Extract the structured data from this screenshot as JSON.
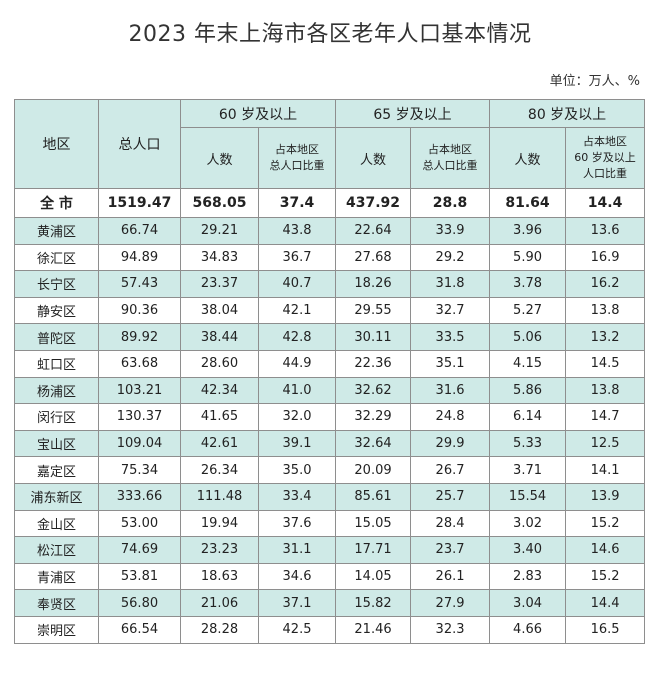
{
  "title": "2023 年末上海市各区老年人口基本情况",
  "unit": "单位：万人、%",
  "header": {
    "region": "地区",
    "total_pop": "总人口",
    "group60": "60 岁及以上",
    "group65": "65 岁及以上",
    "group80": "80 岁及以上",
    "people": "人数",
    "share_line1": "占本地区",
    "share_line2": "总人口比重",
    "share80_line1": "占本地区",
    "share80_line2": "60 岁及以上",
    "share80_line3": "人口比重"
  },
  "rows": [
    [
      "全 市",
      "1519.47",
      "568.05",
      "37.4",
      "437.92",
      "28.8",
      "81.64",
      "14.4"
    ],
    [
      "黄浦区",
      "66.74",
      "29.21",
      "43.8",
      "22.64",
      "33.9",
      "3.96",
      "13.6"
    ],
    [
      "徐汇区",
      "94.89",
      "34.83",
      "36.7",
      "27.68",
      "29.2",
      "5.90",
      "16.9"
    ],
    [
      "长宁区",
      "57.43",
      "23.37",
      "40.7",
      "18.26",
      "31.8",
      "3.78",
      "16.2"
    ],
    [
      "静安区",
      "90.36",
      "38.04",
      "42.1",
      "29.55",
      "32.7",
      "5.27",
      "13.8"
    ],
    [
      "普陀区",
      "89.92",
      "38.44",
      "42.8",
      "30.11",
      "33.5",
      "5.06",
      "13.2"
    ],
    [
      "虹口区",
      "63.68",
      "28.60",
      "44.9",
      "22.36",
      "35.1",
      "4.15",
      "14.5"
    ],
    [
      "杨浦区",
      "103.21",
      "42.34",
      "41.0",
      "32.62",
      "31.6",
      "5.86",
      "13.8"
    ],
    [
      "闵行区",
      "130.37",
      "41.65",
      "32.0",
      "32.29",
      "24.8",
      "6.14",
      "14.7"
    ],
    [
      "宝山区",
      "109.04",
      "42.61",
      "39.1",
      "32.64",
      "29.9",
      "5.33",
      "12.5"
    ],
    [
      "嘉定区",
      "75.34",
      "26.34",
      "35.0",
      "20.09",
      "26.7",
      "3.71",
      "14.1"
    ],
    [
      "浦东新区",
      "333.66",
      "111.48",
      "33.4",
      "85.61",
      "25.7",
      "15.54",
      "13.9"
    ],
    [
      "金山区",
      "53.00",
      "19.94",
      "37.6",
      "15.05",
      "28.4",
      "3.02",
      "15.2"
    ],
    [
      "松江区",
      "74.69",
      "23.23",
      "31.1",
      "17.71",
      "23.7",
      "3.40",
      "14.6"
    ],
    [
      "青浦区",
      "53.81",
      "18.63",
      "34.6",
      "14.05",
      "26.1",
      "2.83",
      "15.2"
    ],
    [
      "奉贤区",
      "56.80",
      "21.06",
      "37.1",
      "15.82",
      "27.9",
      "3.04",
      "14.4"
    ],
    [
      "崇明区",
      "66.54",
      "28.28",
      "42.5",
      "21.46",
      "32.3",
      "4.66",
      "16.5"
    ]
  ],
  "colors": {
    "header_bg": "#cfeae7",
    "stripe_bg": "#cfeae7",
    "border": "#8e8e8e"
  }
}
